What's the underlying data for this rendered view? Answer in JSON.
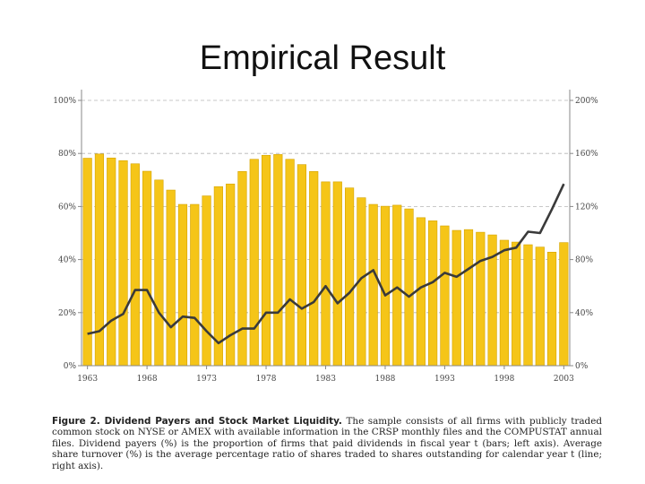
{
  "slide": {
    "title": "Empirical Result"
  },
  "caption": {
    "lead": "Figure 2. Dividend Payers and Stock Market Liquidity.",
    "text": "The sample consists of all firms with publicly traded common stock on NYSE or AMEX with available information in the CRSP monthly files and the COMPUSTAT annual files. Dividend payers (%) is the proportion of firms that paid dividends in fiscal year t (bars; left axis). Average share turnover (%) is the average percentage ratio of shares traded to shares outstanding for calendar year t (line; right axis)."
  },
  "chart_data": {
    "type": "bar",
    "title": "",
    "xlabel": "",
    "ylabel": "",
    "categories": [
      1963,
      1964,
      1965,
      1966,
      1967,
      1968,
      1969,
      1970,
      1971,
      1972,
      1973,
      1974,
      1975,
      1976,
      1977,
      1978,
      1979,
      1980,
      1981,
      1982,
      1983,
      1984,
      1985,
      1986,
      1987,
      1988,
      1989,
      1990,
      1991,
      1992,
      1993,
      1994,
      1995,
      1996,
      1997,
      1998,
      1999,
      2000,
      2001,
      2002,
      2003
    ],
    "x_tick_labels": [
      "1963",
      "1968",
      "1973",
      "1978",
      "1983",
      "1988",
      "1993",
      "1998",
      "2003"
    ],
    "x_tick_years": [
      1963,
      1968,
      1973,
      1978,
      1983,
      1988,
      1993,
      1998,
      2003
    ],
    "left_axis": {
      "ylim": [
        0,
        100
      ],
      "ticks": [
        0,
        20,
        40,
        60,
        80,
        100
      ],
      "tick_labels": [
        "0%",
        "20%",
        "40%",
        "60%",
        "80%",
        "100%"
      ]
    },
    "right_axis": {
      "ylim": [
        0,
        200
      ],
      "ticks": [
        0,
        40,
        80,
        120,
        160,
        200
      ],
      "tick_labels": [
        "0%",
        "40%",
        "80%",
        "120%",
        "160%",
        "200%"
      ]
    },
    "grid": true,
    "series": [
      {
        "type": "bar",
        "axis": "left",
        "color": "#f5c518",
        "values": [
          78.2,
          79.8,
          78.3,
          77.3,
          76.1,
          73.3,
          70.0,
          66.2,
          60.8,
          60.8,
          64.0,
          67.5,
          68.5,
          73.2,
          77.8,
          79.3,
          79.6,
          77.8,
          75.8,
          73.2,
          69.3,
          69.3,
          67.0,
          63.3,
          60.8,
          60.1,
          60.5,
          59.1,
          55.8,
          54.6,
          52.7,
          51.0,
          51.3,
          50.3,
          49.3,
          47.3,
          46.6,
          45.6,
          44.7,
          42.8,
          46.4
        ]
      },
      {
        "type": "line",
        "axis": "right",
        "color": "#3a3a3a",
        "values": [
          24,
          26,
          34,
          39,
          57,
          57,
          40,
          29,
          37,
          36,
          26,
          17,
          23,
          28,
          28,
          40,
          40,
          50,
          43,
          48,
          60,
          47,
          55,
          66,
          72,
          53,
          59,
          52,
          59,
          63,
          70,
          67,
          73,
          79,
          82,
          87,
          89,
          101,
          100,
          118,
          137
        ]
      }
    ]
  }
}
